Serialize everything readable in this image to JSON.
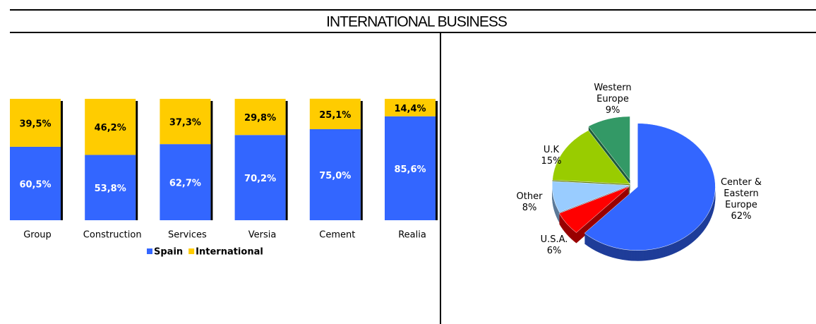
{
  "title": "INTERNATIONAL BUSINESS",
  "chart_data": [
    {
      "type": "stacked-bar",
      "categories": [
        "Group",
        "Construction",
        "Services",
        "Versia",
        "Cement",
        "Realia"
      ],
      "ylim": [
        0,
        100
      ],
      "series": [
        {
          "name": "Spain",
          "color": "#3366ff",
          "values": [
            60.5,
            53.8,
            62.7,
            70.2,
            75.0,
            85.6
          ],
          "value_labels": [
            "60,5%",
            "53,8%",
            "62,7%",
            "70,2%",
            "75,0%",
            "85,6%"
          ]
        },
        {
          "name": "International",
          "color": "#ffcc00",
          "values": [
            39.5,
            46.2,
            37.3,
            29.8,
            25.1,
            14.4
          ],
          "value_labels": [
            "39,5%",
            "46,2%",
            "37,3%",
            "29,8%",
            "25,1%",
            "14,4%"
          ]
        }
      ]
    },
    {
      "type": "pie",
      "categories": [
        "Center & Eastern Europe",
        "U.S.A.",
        "Other",
        "U.K",
        "Western Europe"
      ],
      "values": [
        62,
        6,
        8,
        15,
        9
      ],
      "value_labels": [
        "62%",
        "6%",
        "8%",
        "15%",
        "9%"
      ],
      "colors": [
        "#3366ff",
        "#ff0000",
        "#99ccff",
        "#99cc00",
        "#339966"
      ],
      "side_colors": [
        "#1f3d99",
        "#990000",
        "#5c7a99",
        "#5c7a00",
        "#1f5c3d"
      ]
    }
  ]
}
